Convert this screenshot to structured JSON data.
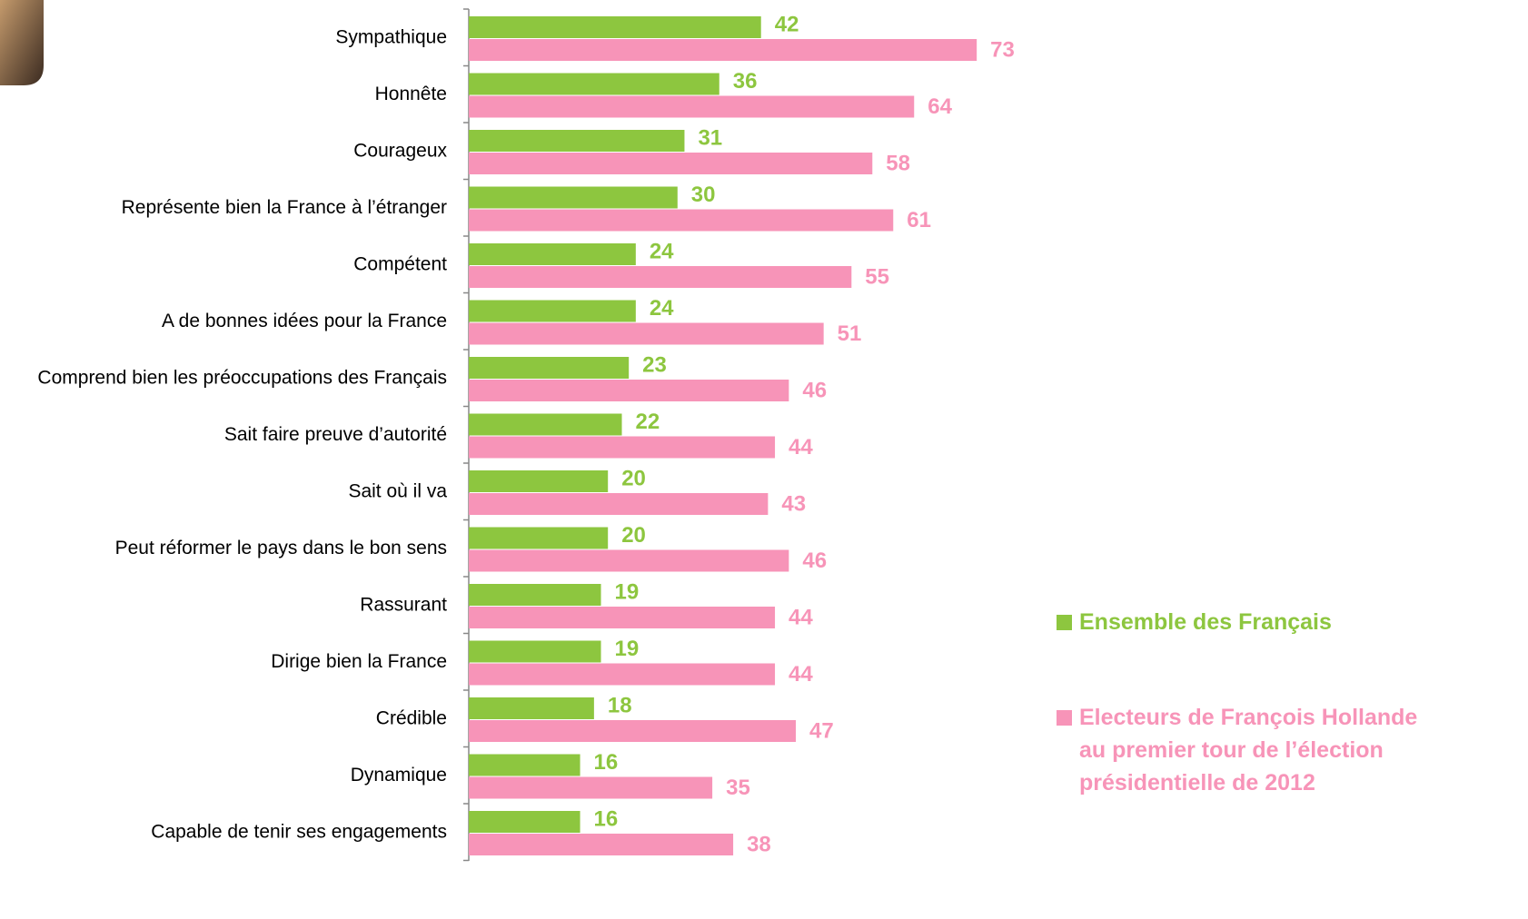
{
  "chart_data": {
    "type": "hbar",
    "categories": [
      "Sympathique",
      "Honnête",
      "Courageux",
      "Représente bien la France à l’étranger",
      "Compétent",
      "A de bonnes idées pour la France",
      "Comprend bien les préoccupations des Français",
      "Sait faire preuve d’autorité",
      "Sait où il va",
      "Peut réformer le pays dans le bon sens",
      "Rassurant",
      "Dirige bien la France",
      "Crédible",
      "Dynamique",
      "Capable de tenir ses engagements"
    ],
    "series": [
      {
        "name": "Ensemble des Français",
        "color": "#8dc63f",
        "values": [
          42,
          36,
          31,
          30,
          24,
          24,
          23,
          22,
          20,
          20,
          19,
          19,
          18,
          16,
          16
        ]
      },
      {
        "name": "Electeurs de François Hollande au premier tour de l’élection présidentielle de 2012",
        "color": "#f794b8",
        "values": [
          73,
          64,
          58,
          61,
          55,
          51,
          46,
          44,
          43,
          46,
          44,
          44,
          47,
          35,
          38
        ]
      }
    ]
  }
}
